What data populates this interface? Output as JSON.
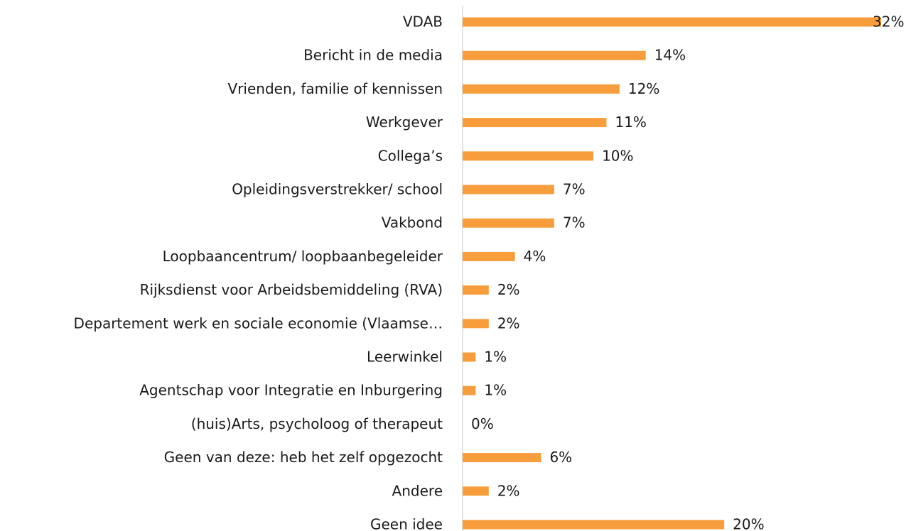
{
  "chart_data": {
    "type": "hbar",
    "categories": [
      "VDAB",
      "Bericht in de media",
      "Vrienden, familie of kennissen",
      "Werkgever",
      "Collega’s",
      "Opleidingsverstrekker/ school",
      "Vakbond",
      "Loopbaancentrum/ loopbaanbegeleider",
      "Rijksdienst voor Arbeidsbemiddeling (RVA)",
      "Departement werk en sociale economie (Vlaamse…",
      "Leerwinkel",
      "Agentschap voor Integratie en Inburgering",
      "(huis)Arts, psycholoog of therapeut",
      "Geen van deze: heb het zelf opgezocht",
      "Andere",
      "Geen idee"
    ],
    "values": [
      32,
      14,
      12,
      11,
      10,
      7,
      7,
      4,
      2,
      2,
      1,
      1,
      0,
      6,
      2,
      20
    ],
    "value_labels": [
      "32%",
      "14%",
      "12%",
      "11%",
      "10%",
      "7%",
      "7%",
      "4%",
      "2%",
      "2%",
      "1%",
      "1%",
      "0%",
      "6%",
      "2%",
      "20%"
    ],
    "color": "#f79d3c"
  }
}
